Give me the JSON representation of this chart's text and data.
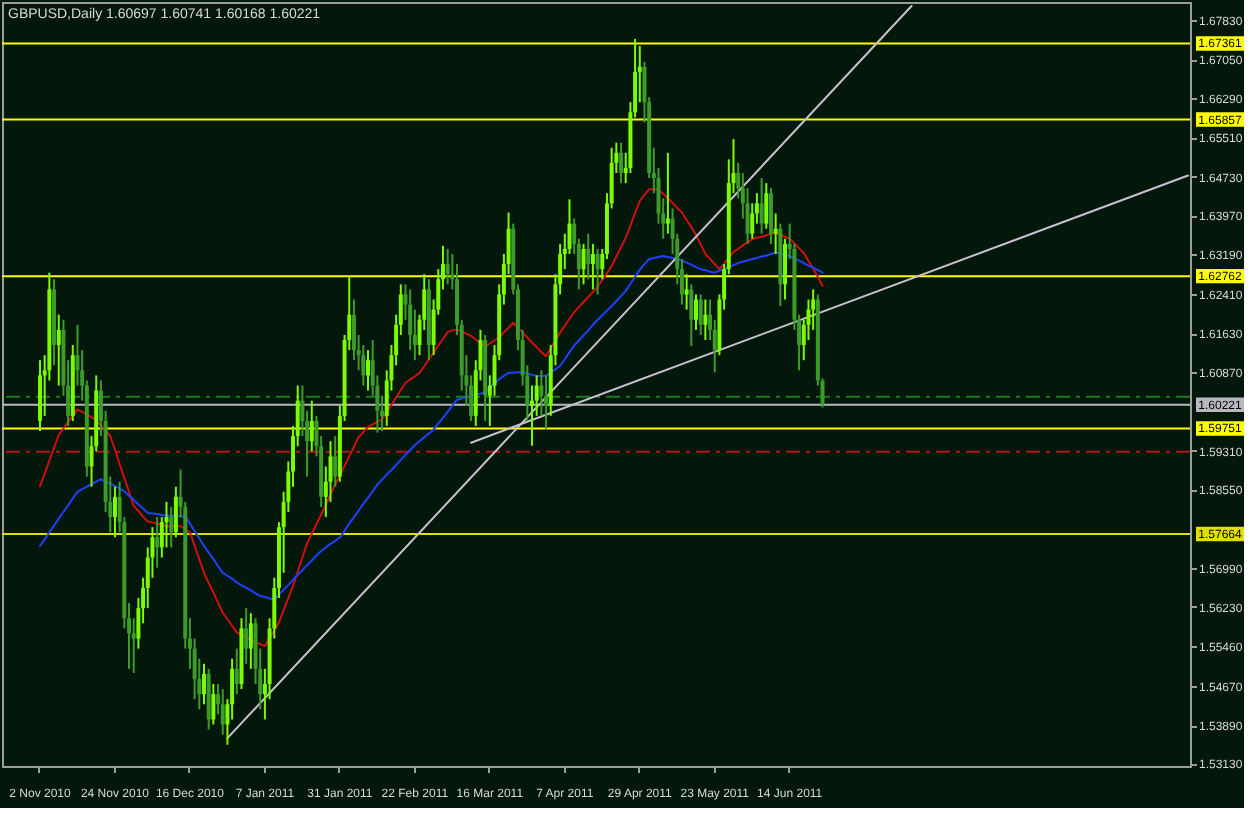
{
  "chart_data": {
    "type": "candlestick",
    "title": "GBPUSD,Daily 1.60697 1.60741 1.60168 1.60221",
    "categories": [
      "2 Nov 2010",
      null,
      null,
      null,
      null,
      null,
      null,
      null,
      null,
      null,
      null,
      null,
      null,
      null,
      null,
      null,
      "24 Nov 2010",
      null,
      null,
      null,
      null,
      null,
      null,
      null,
      null,
      null,
      null,
      null,
      null,
      null,
      null,
      null,
      "16 Dec 2010",
      null,
      null,
      null,
      null,
      null,
      null,
      null,
      null,
      null,
      null,
      null,
      null,
      null,
      null,
      null,
      "7 Jan 2011",
      null,
      null,
      null,
      null,
      null,
      null,
      null,
      null,
      null,
      null,
      null,
      null,
      null,
      null,
      null,
      "31 Jan 2011",
      null,
      null,
      null,
      null,
      null,
      null,
      null,
      null,
      null,
      null,
      null,
      null,
      null,
      null,
      null,
      "22 Feb 2011",
      null,
      null,
      null,
      null,
      null,
      null,
      null,
      null,
      null,
      null,
      null,
      null,
      null,
      null,
      null,
      "16 Mar 2011",
      null,
      null,
      null,
      null,
      null,
      null,
      null,
      null,
      null,
      null,
      null,
      null,
      null,
      null,
      null,
      "7 Apr 2011",
      null,
      null,
      null,
      null,
      null,
      null,
      null,
      null,
      null,
      null,
      null,
      null,
      null,
      null,
      null,
      "29 Apr 2011",
      null,
      null,
      null,
      null,
      null,
      null,
      null,
      null,
      null,
      null,
      null,
      null,
      null,
      null,
      null,
      "23 May 2011",
      null,
      null,
      null,
      null,
      null,
      null,
      null,
      null,
      null,
      null,
      null,
      null,
      null,
      null,
      null,
      "14 Jun 2011",
      null,
      null,
      null,
      null,
      null,
      null,
      null,
      null,
      null,
      null,
      null,
      null,
      null,
      null,
      null,
      null,
      null,
      null,
      null,
      null,
      null,
      null,
      null,
      null,
      null,
      null,
      null,
      null,
      null,
      null,
      null,
      null,
      null,
      null,
      null,
      null,
      null,
      null,
      null,
      null,
      null,
      null,
      null,
      null,
      null,
      null,
      null,
      null,
      null,
      null,
      null,
      null,
      null,
      null,
      null,
      null,
      null,
      null,
      null,
      null,
      null,
      null,
      null,
      null,
      null,
      null,
      null,
      null,
      null,
      null,
      null,
      null,
      null,
      null,
      null,
      null,
      null,
      null,
      null,
      null,
      null,
      null,
      null,
      null,
      null
    ],
    "ohlc": [
      [
        1.599,
        1.611,
        1.597,
        1.608
      ],
      [
        1.608,
        1.612,
        1.6,
        1.609
      ],
      [
        1.609,
        1.6283,
        1.607,
        1.625
      ],
      [
        1.625,
        1.627,
        1.61,
        1.614
      ],
      [
        1.614,
        1.62,
        1.606,
        1.617
      ],
      [
        1.617,
        1.619,
        1.604,
        1.606
      ],
      [
        1.606,
        1.611,
        1.598,
        1.6
      ],
      [
        1.6,
        1.614,
        1.599,
        1.612
      ],
      [
        1.612,
        1.618,
        1.606,
        1.609
      ],
      [
        1.609,
        1.613,
        1.603,
        1.606
      ],
      [
        1.606,
        1.607,
        1.588,
        1.59
      ],
      [
        1.59,
        1.596,
        1.586,
        1.594
      ],
      [
        1.594,
        1.608,
        1.593,
        1.605
      ],
      [
        1.605,
        1.607,
        1.596,
        1.599
      ],
      [
        1.599,
        1.601,
        1.581,
        1.583
      ],
      [
        1.583,
        1.588,
        1.577,
        1.58
      ],
      [
        1.58,
        1.586,
        1.576,
        1.584
      ],
      [
        1.584,
        1.587,
        1.577,
        1.579
      ],
      [
        1.579,
        1.58,
        1.558,
        1.56
      ],
      [
        1.56,
        1.563,
        1.55,
        1.557
      ],
      [
        1.557,
        1.56,
        1.5492,
        1.556
      ],
      [
        1.556,
        1.564,
        1.554,
        1.562
      ],
      [
        1.562,
        1.568,
        1.559,
        1.566
      ],
      [
        1.566,
        1.574,
        1.562,
        1.572
      ],
      [
        1.572,
        1.578,
        1.568,
        1.576
      ],
      [
        1.576,
        1.58,
        1.57,
        1.574
      ],
      [
        1.574,
        1.58,
        1.572,
        1.579
      ],
      [
        1.579,
        1.583,
        1.574,
        1.58
      ],
      [
        1.58,
        1.582,
        1.574,
        1.577
      ],
      [
        1.577,
        1.586,
        1.576,
        1.584
      ],
      [
        1.584,
        1.5894,
        1.58,
        1.582
      ],
      [
        1.582,
        1.583,
        1.554,
        1.556
      ],
      [
        1.556,
        1.56,
        1.55,
        1.554
      ],
      [
        1.554,
        1.556,
        1.544,
        1.548
      ],
      [
        1.548,
        1.552,
        1.542,
        1.545
      ],
      [
        1.545,
        1.551,
        1.543,
        1.549
      ],
      [
        1.549,
        1.55,
        1.538,
        1.54
      ],
      [
        1.54,
        1.547,
        1.539,
        1.545
      ],
      [
        1.545,
        1.547,
        1.541,
        1.543
      ],
      [
        1.543,
        1.546,
        1.537,
        1.539
      ],
      [
        1.539,
        1.544,
        1.535,
        1.543
      ],
      [
        1.543,
        1.552,
        1.54,
        1.55
      ],
      [
        1.55,
        1.554,
        1.545,
        1.547
      ],
      [
        1.547,
        1.56,
        1.546,
        1.558
      ],
      [
        1.558,
        1.562,
        1.551,
        1.554
      ],
      [
        1.554,
        1.561,
        1.55,
        1.559
      ],
      [
        1.559,
        1.56,
        1.547,
        1.55
      ],
      [
        1.55,
        1.554,
        1.542,
        1.545
      ],
      [
        1.545,
        1.55,
        1.54,
        1.547
      ],
      [
        1.547,
        1.56,
        1.544,
        1.558
      ],
      [
        1.558,
        1.568,
        1.556,
        1.566
      ],
      [
        1.566,
        1.579,
        1.564,
        1.578
      ],
      [
        1.578,
        1.585,
        1.569,
        1.583
      ],
      [
        1.583,
        1.591,
        1.581,
        1.589
      ],
      [
        1.589,
        1.598,
        1.586,
        1.596
      ],
      [
        1.596,
        1.606,
        1.594,
        1.603
      ],
      [
        1.603,
        1.606,
        1.596,
        1.599
      ],
      [
        1.599,
        1.601,
        1.588,
        1.595
      ],
      [
        1.595,
        1.603,
        1.593,
        1.599
      ],
      [
        1.599,
        1.6,
        1.592,
        1.594
      ],
      [
        1.594,
        1.596,
        1.582,
        1.584
      ],
      [
        1.584,
        1.59,
        1.58,
        1.587
      ],
      [
        1.587,
        1.595,
        1.583,
        1.592
      ],
      [
        1.592,
        1.596,
        1.586,
        1.588
      ],
      [
        1.588,
        1.602,
        1.587,
        1.6
      ],
      [
        1.6,
        1.616,
        1.599,
        1.615
      ],
      [
        1.615,
        1.6275,
        1.613,
        1.62
      ],
      [
        1.62,
        1.623,
        1.611,
        1.613
      ],
      [
        1.613,
        1.616,
        1.609,
        1.612
      ],
      [
        1.612,
        1.614,
        1.606,
        1.608
      ],
      [
        1.608,
        1.613,
        1.605,
        1.611
      ],
      [
        1.611,
        1.615,
        1.604,
        1.606
      ],
      [
        1.606,
        1.608,
        1.5967,
        1.601
      ],
      [
        1.601,
        1.604,
        1.597,
        1.6
      ],
      [
        1.6,
        1.609,
        1.598,
        1.607
      ],
      [
        1.607,
        1.614,
        1.605,
        1.612
      ],
      [
        1.612,
        1.62,
        1.61,
        1.618
      ],
      [
        1.618,
        1.626,
        1.616,
        1.624
      ],
      [
        1.624,
        1.626,
        1.619,
        1.622
      ],
      [
        1.622,
        1.625,
        1.613,
        1.616
      ],
      [
        1.616,
        1.621,
        1.611,
        1.614
      ],
      [
        1.614,
        1.62,
        1.612,
        1.619
      ],
      [
        1.619,
        1.628,
        1.617,
        1.625
      ],
      [
        1.625,
        1.627,
        1.611,
        1.614
      ],
      [
        1.614,
        1.623,
        1.612,
        1.621
      ],
      [
        1.621,
        1.629,
        1.62,
        1.627
      ],
      [
        1.627,
        1.6336,
        1.625,
        1.63
      ],
      [
        1.63,
        1.633,
        1.626,
        1.628
      ],
      [
        1.628,
        1.632,
        1.625,
        1.627
      ],
      [
        1.627,
        1.63,
        1.616,
        1.618
      ],
      [
        1.618,
        1.619,
        1.605,
        1.608
      ],
      [
        1.608,
        1.612,
        1.602,
        1.606
      ],
      [
        1.606,
        1.608,
        1.599,
        1.6
      ],
      [
        1.6,
        1.611,
        1.598,
        1.609
      ],
      [
        1.609,
        1.617,
        1.607,
        1.615
      ],
      [
        1.615,
        1.616,
        1.599,
        1.604
      ],
      [
        1.604,
        1.608,
        1.598,
        1.606
      ],
      [
        1.606,
        1.614,
        1.604,
        1.612
      ],
      [
        1.612,
        1.626,
        1.611,
        1.624
      ],
      [
        1.624,
        1.632,
        1.622,
        1.63
      ],
      [
        1.63,
        1.6402,
        1.628,
        1.637
      ],
      [
        1.637,
        1.638,
        1.624,
        1.625
      ],
      [
        1.625,
        1.626,
        1.613,
        1.615
      ],
      [
        1.615,
        1.617,
        1.606,
        1.608
      ],
      [
        1.608,
        1.61,
        1.599,
        1.602
      ],
      [
        1.602,
        1.606,
        1.5941,
        1.603
      ],
      [
        1.603,
        1.608,
        1.6,
        1.606
      ],
      [
        1.606,
        1.609,
        1.6,
        1.604
      ],
      [
        1.604,
        1.608,
        1.5973,
        1.602
      ],
      [
        1.602,
        1.614,
        1.6,
        1.612
      ],
      [
        1.612,
        1.628,
        1.61,
        1.626
      ],
      [
        1.626,
        1.634,
        1.624,
        1.632
      ],
      [
        1.632,
        1.636,
        1.629,
        1.633
      ],
      [
        1.633,
        1.6428,
        1.632,
        1.638
      ],
      [
        1.638,
        1.639,
        1.632,
        1.634
      ],
      [
        1.634,
        1.635,
        1.625,
        1.629
      ],
      [
        1.629,
        1.634,
        1.626,
        1.633
      ],
      [
        1.633,
        1.636,
        1.627,
        1.63
      ],
      [
        1.63,
        1.634,
        1.625,
        1.632
      ],
      [
        1.632,
        1.633,
        1.624,
        1.629
      ],
      [
        1.629,
        1.633,
        1.627,
        1.632
      ],
      [
        1.632,
        1.644,
        1.631,
        1.642
      ],
      [
        1.642,
        1.653,
        1.641,
        1.65
      ],
      [
        1.65,
        1.654,
        1.648,
        1.652
      ],
      [
        1.652,
        1.654,
        1.646,
        1.648
      ],
      [
        1.648,
        1.652,
        1.646,
        1.649
      ],
      [
        1.649,
        1.662,
        1.648,
        1.66
      ],
      [
        1.66,
        1.6745,
        1.659,
        1.668
      ],
      [
        1.668,
        1.6731,
        1.662,
        1.669
      ],
      [
        1.669,
        1.67,
        1.658,
        1.662
      ],
      [
        1.662,
        1.663,
        1.647,
        1.648
      ],
      [
        1.648,
        1.653,
        1.644,
        1.647
      ],
      [
        1.647,
        1.649,
        1.638,
        1.64
      ],
      [
        1.64,
        1.643,
        1.635,
        1.638
      ],
      [
        1.638,
        1.652,
        1.636,
        1.639
      ],
      [
        1.639,
        1.641,
        1.632,
        1.635
      ],
      [
        1.635,
        1.636,
        1.626,
        1.629
      ],
      [
        1.629,
        1.631,
        1.622,
        1.624
      ],
      [
        1.624,
        1.628,
        1.621,
        1.625
      ],
      [
        1.625,
        1.626,
        1.6138,
        1.619
      ],
      [
        1.619,
        1.624,
        1.617,
        1.623
      ],
      [
        1.623,
        1.624,
        1.616,
        1.618
      ],
      [
        1.618,
        1.623,
        1.615,
        1.62
      ],
      [
        1.62,
        1.623,
        1.615,
        1.617
      ],
      [
        1.617,
        1.619,
        1.6086,
        1.613
      ],
      [
        1.613,
        1.624,
        1.612,
        1.623
      ],
      [
        1.623,
        1.63,
        1.621,
        1.629
      ],
      [
        1.629,
        1.6507,
        1.628,
        1.646
      ],
      [
        1.646,
        1.6547,
        1.644,
        1.648
      ],
      [
        1.648,
        1.65,
        1.643,
        1.645
      ],
      [
        1.645,
        1.648,
        1.639,
        1.642
      ],
      [
        1.642,
        1.645,
        1.634,
        1.636
      ],
      [
        1.636,
        1.642,
        1.635,
        1.64
      ],
      [
        1.64,
        1.644,
        1.638,
        1.642
      ],
      [
        1.642,
        1.647,
        1.636,
        1.638
      ],
      [
        1.638,
        1.646,
        1.637,
        1.644
      ],
      [
        1.644,
        1.645,
        1.634,
        1.636
      ],
      [
        1.636,
        1.64,
        1.632,
        1.637
      ],
      [
        1.637,
        1.638,
        1.6217,
        1.626
      ],
      [
        1.626,
        1.635,
        1.623,
        1.634
      ],
      [
        1.634,
        1.638,
        1.631,
        1.633
      ],
      [
        1.633,
        1.634,
        1.617,
        1.619
      ],
      [
        1.619,
        1.62,
        1.609,
        1.614
      ],
      [
        1.614,
        1.619,
        1.611,
        1.618
      ],
      [
        1.618,
        1.623,
        1.615,
        1.621
      ],
      [
        1.621,
        1.625,
        1.617,
        1.623
      ],
      [
        1.623,
        1.624,
        1.606,
        1.607
      ],
      [
        1.60697,
        1.60741,
        1.60168,
        1.60221
      ],
      null,
      null,
      null,
      null,
      null,
      null,
      null,
      null,
      null,
      null,
      null,
      null,
      null,
      null,
      null,
      null,
      null,
      null,
      null,
      null,
      null,
      null,
      null,
      null,
      null,
      null,
      null,
      null,
      null,
      null,
      null,
      null,
      null,
      null,
      null,
      null,
      null,
      null,
      null,
      null,
      null,
      null,
      null,
      null,
      null,
      null,
      null,
      null,
      null,
      null,
      null,
      null,
      null,
      null,
      null,
      null,
      null,
      null,
      null,
      null,
      null,
      null,
      null,
      null,
      null,
      null,
      null,
      null,
      null,
      null,
      null,
      null,
      null,
      null,
      null,
      null,
      null,
      null
    ],
    "colors": [
      "#7cfc00",
      "#7cfc00",
      "#7cfc00",
      "#3c9b2a",
      "#7cfc00",
      "#3c9b2a",
      "#3c9b2a",
      "#7cfc00",
      "#3c9b2a",
      "#3c9b2a",
      "#3c9b2a",
      "#7cfc00",
      "#7cfc00",
      "#3c9b2a",
      "#3c9b2a",
      "#3c9b2a",
      "#7cfc00",
      "#3c9b2a",
      "#3c9b2a",
      "#3c9b2a",
      "#3c9b2a",
      "#7cfc00",
      "#7cfc00",
      "#7cfc00",
      "#7cfc00",
      "#3c9b2a",
      "#7cfc00",
      "#7cfc00",
      "#3c9b2a",
      "#7cfc00",
      "#3c9b2a",
      "#3c9b2a",
      "#3c9b2a",
      "#3c9b2a",
      "#3c9b2a",
      "#7cfc00",
      "#3c9b2a",
      "#7cfc00",
      "#3c9b2a",
      "#3c9b2a",
      "#7cfc00",
      "#7cfc00",
      "#3c9b2a",
      "#7cfc00",
      "#3c9b2a",
      "#7cfc00",
      "#3c9b2a",
      "#3c9b2a",
      "#7cfc00",
      "#7cfc00",
      "#7cfc00",
      "#7cfc00",
      "#7cfc00",
      "#7cfc00",
      "#7cfc00",
      "#7cfc00",
      "#3c9b2a",
      "#3c9b2a",
      "#7cfc00",
      "#3c9b2a",
      "#3c9b2a",
      "#7cfc00",
      "#7cfc00",
      "#3c9b2a",
      "#7cfc00",
      "#7cfc00",
      "#7cfc00",
      "#3c9b2a",
      "#3c9b2a",
      "#3c9b2a",
      "#7cfc00",
      "#3c9b2a",
      "#3c9b2a",
      "#3c9b2a",
      "#7cfc00",
      "#7cfc00",
      "#7cfc00",
      "#7cfc00",
      "#3c9b2a",
      "#3c9b2a",
      "#3c9b2a",
      "#7cfc00",
      "#7cfc00",
      "#3c9b2a",
      "#7cfc00",
      "#7cfc00",
      "#7cfc00",
      "#3c9b2a",
      "#3c9b2a",
      "#3c9b2a",
      "#3c9b2a",
      "#3c9b2a",
      "#3c9b2a",
      "#7cfc00",
      "#7cfc00",
      "#3c9b2a",
      "#7cfc00",
      "#7cfc00",
      "#7cfc00",
      "#7cfc00",
      "#7cfc00",
      "#3c9b2a",
      "#3c9b2a",
      "#3c9b2a",
      "#3c9b2a",
      "#7cfc00",
      "#7cfc00",
      "#3c9b2a",
      "#3c9b2a",
      "#7cfc00",
      "#7cfc00",
      "#7cfc00",
      "#7cfc00",
      "#7cfc00",
      "#3c9b2a",
      "#3c9b2a",
      "#7cfc00",
      "#3c9b2a",
      "#7cfc00",
      "#3c9b2a",
      "#7cfc00",
      "#7cfc00",
      "#7cfc00",
      "#7cfc00",
      "#3c9b2a",
      "#7cfc00",
      "#7cfc00",
      "#7cfc00",
      "#7cfc00",
      "#3c9b2a",
      "#3c9b2a",
      "#3c9b2a",
      "#3c9b2a",
      "#3c9b2a",
      "#7cfc00",
      "#3c9b2a",
      "#3c9b2a",
      "#3c9b2a",
      "#7cfc00",
      "#3c9b2a",
      "#7cfc00",
      "#3c9b2a",
      "#7cfc00",
      "#3c9b2a",
      "#3c9b2a",
      "#7cfc00",
      "#7cfc00",
      "#7cfc00",
      "#7cfc00",
      "#3c9b2a",
      "#3c9b2a",
      "#3c9b2a",
      "#7cfc00",
      "#7cfc00",
      "#3c9b2a",
      "#7cfc00",
      "#3c9b2a",
      "#7cfc00",
      "#3c9b2a",
      "#7cfc00",
      "#3c9b2a",
      "#3c9b2a",
      "#3c9b2a",
      "#7cfc00",
      "#7cfc00",
      "#7cfc00",
      "#3c9b2a",
      "#3c9b2a",
      null,
      null,
      null,
      null,
      null,
      null,
      null,
      null,
      null,
      null,
      null,
      null,
      null,
      null,
      null,
      null,
      null,
      null,
      null,
      null,
      null,
      null,
      null,
      null,
      null,
      null,
      null,
      null,
      null,
      null,
      null,
      null,
      null,
      null,
      null,
      null,
      null,
      null,
      null,
      null,
      null,
      null,
      null,
      null,
      null,
      null,
      null,
      null,
      null,
      null,
      null,
      null,
      null,
      null,
      null,
      null,
      null,
      null,
      null,
      null,
      null,
      null,
      null,
      null,
      null,
      null,
      null,
      null,
      null,
      null,
      null,
      null,
      null,
      null,
      null,
      null,
      null,
      null
    ],
    "series": [
      {
        "type": "line",
        "color": "#d01010",
        "values": [
          1.5861,
          1.5886,
          1.5912,
          1.5937,
          1.5962,
          1.5975,
          1.5988,
          1.6,
          1.6013,
          1.6008,
          1.6003,
          1.5997,
          1.5992,
          1.5981,
          1.5971,
          1.596,
          1.5933,
          1.5905,
          1.5877,
          1.585,
          1.5822,
          1.5812,
          1.5801,
          1.5791,
          1.5789,
          1.5787,
          1.5784,
          1.5782,
          1.5782,
          1.5782,
          1.5782,
          1.5776,
          1.577,
          1.5743,
          1.5717,
          1.569,
          1.567,
          1.5651,
          1.5631,
          1.5611,
          1.5598,
          1.5585,
          1.5572,
          1.5567,
          1.5562,
          1.5557,
          1.5552,
          1.5549,
          1.5545,
          1.5561,
          1.5576,
          1.5592,
          1.5616,
          1.564,
          1.5664,
          1.5692,
          1.572,
          1.5748,
          1.5767,
          1.5786,
          1.5805,
          1.5825,
          1.5845,
          1.5864,
          1.5882,
          1.5901,
          1.592,
          1.5939,
          1.5958,
          1.5968,
          1.5978,
          1.5983,
          1.5988,
          1.5993,
          1.6007,
          1.6022,
          1.6036,
          1.6051,
          1.6065,
          1.6072,
          1.6078,
          1.6085,
          1.6098,
          1.6112,
          1.6125,
          1.6139,
          1.6152,
          1.6166,
          1.6169,
          1.6171,
          1.6167,
          1.6162,
          1.6158,
          1.6151,
          1.6144,
          1.6137,
          1.6143,
          1.6149,
          1.6155,
          1.6165,
          1.6174,
          1.6184,
          1.6174,
          1.6165,
          1.6155,
          1.6145,
          1.6136,
          1.6126,
          1.6118,
          1.6134,
          1.6149,
          1.6165,
          1.6178,
          1.6192,
          1.6205,
          1.6215,
          1.6225,
          1.6235,
          1.6245,
          1.6255,
          1.6269,
          1.6282,
          1.6296,
          1.6315,
          1.6333,
          1.6352,
          1.6376,
          1.6401,
          1.6425,
          1.6437,
          1.6448,
          1.6448,
          1.6447,
          1.6439,
          1.643,
          1.6421,
          1.6411,
          1.6402,
          1.6387,
          1.6373,
          1.6358,
          1.6339,
          1.632,
          1.631,
          1.63,
          1.629,
          1.6301,
          1.6313,
          1.6324,
          1.633,
          1.6337,
          1.6343,
          1.6349,
          1.6352,
          1.6354,
          1.6357,
          1.636,
          1.6362,
          1.6358,
          1.6354,
          1.635,
          1.6341,
          1.6331,
          1.6322,
          1.6306,
          1.6291,
          1.6275,
          1.6257,
          null,
          null,
          null,
          null,
          null,
          null,
          null,
          null,
          null,
          null,
          null,
          null,
          null,
          null,
          null,
          null,
          null,
          null,
          null,
          null,
          null,
          null,
          null,
          null,
          null,
          null,
          null,
          null,
          null,
          null,
          null,
          null,
          null,
          null,
          null,
          null,
          null,
          null,
          null,
          null,
          null,
          null,
          null,
          null,
          null,
          null,
          null,
          null,
          null,
          null,
          null,
          null,
          null,
          null,
          null,
          null,
          null,
          null,
          null,
          null,
          null,
          null,
          null,
          null,
          null,
          null,
          null,
          null,
          null,
          null,
          null,
          null,
          null,
          null,
          null,
          null,
          null,
          null
        ]
      },
      {
        "type": "line",
        "color": "#2040ff",
        "values": [
          1.5743,
          1.5756,
          1.577,
          1.5783,
          1.5797,
          1.581,
          1.5823,
          1.5837,
          1.585,
          1.5855,
          1.586,
          1.5865,
          1.587,
          1.5875,
          1.587,
          1.5866,
          1.5861,
          1.5856,
          1.5851,
          1.5842,
          1.5834,
          1.5825,
          1.5817,
          1.5808,
          1.5807,
          1.5806,
          1.5804,
          1.5803,
          1.5802,
          1.5802,
          1.5801,
          1.5801,
          1.5787,
          1.5772,
          1.5758,
          1.5743,
          1.573,
          1.5717,
          1.5703,
          1.569,
          1.5684,
          1.5678,
          1.5671,
          1.5665,
          1.566,
          1.5655,
          1.5649,
          1.5644,
          1.5642,
          1.5639,
          1.5637,
          1.5647,
          1.5656,
          1.5666,
          1.5676,
          1.5686,
          1.5695,
          1.5705,
          1.5714,
          1.5724,
          1.5733,
          1.574,
          1.5747,
          1.5753,
          1.576,
          1.5773,
          1.5787,
          1.58,
          1.5813,
          1.5826,
          1.5838,
          1.5851,
          1.5864,
          1.5874,
          1.5884,
          1.5893,
          1.5903,
          1.5913,
          1.5923,
          1.5932,
          1.5942,
          1.595,
          1.5958,
          1.5965,
          1.5973,
          1.5985,
          1.5996,
          1.6008,
          1.602,
          1.6032,
          1.6034,
          1.6037,
          1.6039,
          1.6042,
          1.6044,
          1.6047,
          1.6056,
          1.6064,
          1.6073,
          1.6079,
          1.6085,
          1.6085,
          1.6086,
          1.6086,
          1.6084,
          1.6081,
          1.6079,
          1.6079,
          1.6079,
          1.6086,
          1.6092,
          1.6099,
          1.6112,
          1.6126,
          1.6139,
          1.6149,
          1.6159,
          1.6169,
          1.618,
          1.619,
          1.6199,
          1.6208,
          1.6217,
          1.6227,
          1.6237,
          1.6247,
          1.6261,
          1.6275,
          1.6289,
          1.63,
          1.631,
          1.6312,
          1.6314,
          1.6316,
          1.6314,
          1.6312,
          1.631,
          1.6307,
          1.6303,
          1.6299,
          1.6294,
          1.629,
          1.6288,
          1.6285,
          1.6283,
          1.6287,
          1.629,
          1.6294,
          1.6298,
          1.6302,
          1.6305,
          1.6307,
          1.631,
          1.6312,
          1.6315,
          1.6317,
          1.632,
          1.6323,
          1.6321,
          1.6318,
          1.6316,
          1.6311,
          1.6307,
          1.6302,
          1.6297,
          1.6293,
          1.6288,
          1.6283,
          null,
          null,
          null,
          null,
          null,
          null,
          null,
          null,
          null,
          null,
          null,
          null,
          null,
          null,
          null,
          null,
          null,
          null,
          null,
          null,
          null,
          null,
          null,
          null,
          null,
          null,
          null,
          null,
          null,
          null,
          null,
          null,
          null,
          null,
          null,
          null,
          null,
          null,
          null,
          null,
          null,
          null,
          null,
          null,
          null,
          null,
          null,
          null,
          null,
          null,
          null,
          null,
          null,
          null,
          null,
          null,
          null,
          null,
          null,
          null,
          null,
          null,
          null,
          null,
          null,
          null,
          null,
          null,
          null,
          null,
          null,
          null,
          null,
          null,
          null,
          null,
          null,
          null
        ]
      },
      {
        "type": "line",
        "color": "#c8c0d0",
        "values": [
          null,
          null,
          null,
          null,
          null,
          null,
          null,
          null,
          null,
          null,
          null,
          null,
          null,
          null,
          null,
          null,
          null,
          null,
          null,
          null,
          null,
          null,
          null,
          null,
          null,
          null,
          null,
          null,
          null,
          null,
          null,
          null,
          null,
          null,
          null,
          null,
          null,
          null,
          null,
          null,
          1.5363,
          null,
          null,
          null,
          null,
          null,
          null,
          null,
          null,
          null,
          null,
          null,
          null,
          null,
          null,
          null,
          null,
          null,
          null,
          null,
          null,
          null,
          null,
          null,
          null,
          null,
          null,
          null,
          null,
          null,
          null,
          null,
          null,
          null,
          null,
          null,
          null,
          null,
          null,
          null,
          null,
          null,
          null,
          null,
          null,
          null,
          null,
          null,
          null,
          null,
          null,
          null,
          null,
          null,
          null,
          null,
          null,
          null,
          null,
          null,
          null,
          null,
          null,
          null,
          null,
          null,
          null,
          null,
          null,
          null,
          null,
          null,
          null,
          null,
          null,
          null,
          null,
          null,
          null,
          null,
          null,
          null,
          null,
          null,
          null,
          null,
          null,
          null,
          null,
          null,
          null,
          null,
          null,
          null,
          null,
          null,
          null,
          null,
          null,
          null,
          null,
          null,
          null,
          null,
          null,
          null,
          null,
          null,
          null,
          null,
          null,
          null,
          null,
          null,
          null,
          null,
          null,
          null,
          null,
          null,
          null,
          null,
          null,
          null,
          null,
          null,
          null,
          null,
          null,
          null,
          null,
          null,
          null,
          null,
          null,
          null,
          null,
          null,
          null,
          null,
          null,
          null,
          null,
          null,
          null,
          null,
          1.681,
          null,
          null,
          null,
          null,
          null,
          null,
          null,
          null,
          null,
          null,
          null,
          null,
          null,
          null,
          null,
          null,
          null,
          null,
          null,
          null,
          null,
          null,
          null,
          null,
          null,
          null,
          null,
          null,
          null,
          null,
          null,
          null,
          null,
          null,
          null,
          null,
          null,
          null,
          null,
          null,
          null,
          null,
          null,
          null,
          null,
          null,
          null,
          null,
          null,
          null,
          null,
          null,
          null,
          null,
          null,
          null,
          null,
          null,
          null
        ]
      },
      {
        "type": "line",
        "color": "#c8c0d0",
        "values": [
          null,
          null,
          null,
          null,
          null,
          null,
          null,
          null,
          null,
          null,
          null,
          null,
          null,
          null,
          null,
          null,
          null,
          null,
          null,
          null,
          null,
          null,
          null,
          null,
          null,
          null,
          null,
          null,
          null,
          null,
          null,
          null,
          null,
          null,
          null,
          null,
          null,
          null,
          null,
          null,
          null,
          null,
          null,
          null,
          null,
          null,
          null,
          null,
          null,
          null,
          null,
          null,
          null,
          null,
          null,
          null,
          null,
          null,
          null,
          null,
          null,
          null,
          null,
          null,
          null,
          null,
          null,
          null,
          null,
          null,
          null,
          null,
          null,
          null,
          null,
          null,
          null,
          null,
          null,
          null,
          null,
          null,
          null,
          null,
          null,
          null,
          null,
          null,
          null,
          null,
          null,
          null,
          1.5947,
          null,
          null,
          null,
          null,
          null,
          null,
          null,
          null,
          null,
          null,
          null,
          null,
          null,
          null,
          null,
          null,
          null,
          null,
          null,
          null,
          null,
          null,
          null,
          null,
          null,
          null,
          null,
          null,
          null,
          null,
          null,
          null,
          null,
          null,
          null,
          null,
          null,
          null,
          null,
          null,
          null,
          null,
          null,
          null,
          null,
          null,
          null,
          null,
          null,
          null,
          null,
          null,
          null,
          null,
          null,
          null,
          null,
          null,
          null,
          null,
          null,
          null,
          null,
          null,
          null,
          null,
          null,
          null,
          null,
          null,
          null,
          null,
          null,
          null,
          null,
          null,
          null,
          null,
          null,
          null,
          null,
          null,
          null,
          null,
          null,
          null,
          null,
          null,
          null,
          null,
          null,
          null,
          null,
          null,
          null,
          null,
          null,
          null,
          null,
          null,
          null,
          null,
          null,
          null,
          null,
          null,
          null,
          null,
          null,
          null,
          null,
          null,
          null,
          null,
          null,
          null,
          null,
          null,
          null,
          null,
          null,
          null,
          null,
          null,
          null,
          null,
          null,
          null,
          null,
          null,
          null,
          null,
          null,
          null,
          null,
          null,
          null,
          null,
          null,
          null,
          null,
          null,
          null,
          null,
          null,
          null,
          null,
          null,
          null,
          null,
          null,
          null,
          1.6475
        ]
      }
    ],
    "ylim": [
      1.5308,
      1.6818
    ],
    "yticks": [
      {
        "value": 1.6783,
        "label": "1.67830"
      },
      {
        "value": 1.6705,
        "label": "1.67050"
      },
      {
        "value": 1.6629,
        "label": "1.66290"
      },
      {
        "value": 1.6551,
        "label": "1.65510"
      },
      {
        "value": 1.6473,
        "label": "1.64730"
      },
      {
        "value": 1.6397,
        "label": "1.63970"
      },
      {
        "value": 1.6319,
        "label": "1.63190"
      },
      {
        "value": 1.6241,
        "label": "1.62410"
      },
      {
        "value": 1.6163,
        "label": "1.61630"
      },
      {
        "value": 1.6087,
        "label": "1.60870"
      },
      {
        "value": 1.5931,
        "label": "1.59310"
      },
      {
        "value": 1.5855,
        "label": "1.58550"
      },
      {
        "value": 1.5699,
        "label": "1.56990"
      },
      {
        "value": 1.5623,
        "label": "1.56230"
      },
      {
        "value": 1.5546,
        "label": "1.55460"
      },
      {
        "value": 1.5467,
        "label": "1.54670"
      },
      {
        "value": 1.5389,
        "label": "1.53890"
      },
      {
        "value": 1.5313,
        "label": "1.53130"
      }
    ],
    "ref_lines": [
      {
        "axis": "y",
        "value": 1.6038,
        "color": "#1e7a1e",
        "line_style": "dashed"
      },
      {
        "axis": "y",
        "value": 1.5929,
        "color": "#b01818",
        "line_style": "dashed"
      },
      {
        "axis": "y",
        "value": 1.60221,
        "label": "1.60221",
        "color": "#b8b8c0"
      },
      {
        "axis": "y",
        "value": 1.67361,
        "label": "1.67361",
        "color": "#ffff00"
      },
      {
        "axis": "y",
        "value": 1.65857,
        "label": "1.65857",
        "color": "#ffff00"
      },
      {
        "axis": "y",
        "value": 1.62762,
        "label": "1.62762",
        "color": "#ffff00"
      },
      {
        "axis": "y",
        "value": 1.59751,
        "label": "1.59751",
        "color": "#ffff00"
      },
      {
        "axis": "y",
        "value": 1.57664,
        "label": "1.57664",
        "color": "#e0e000"
      }
    ]
  }
}
